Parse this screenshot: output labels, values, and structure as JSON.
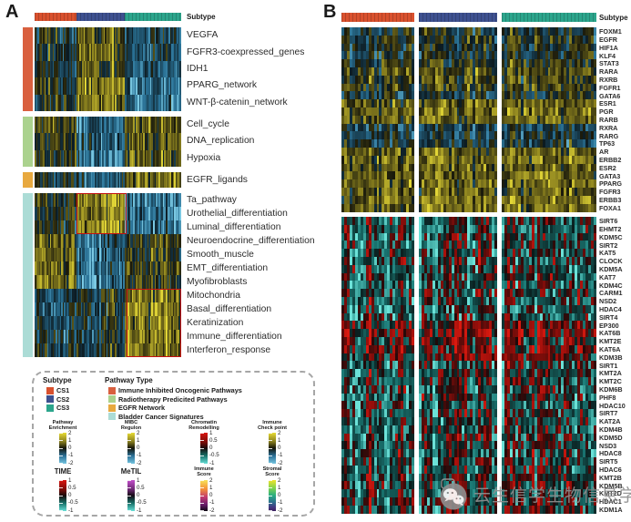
{
  "panels": {
    "a": {
      "label": "A",
      "subtype_header": "Subtype"
    },
    "b": {
      "label": "B",
      "subtype_header": "Subtype"
    }
  },
  "subtypes": [
    {
      "label": "CS1",
      "color": "#d9512e"
    },
    {
      "label": "CS2",
      "color": "#3e5190"
    },
    {
      "label": "CS3",
      "color": "#2ca58c"
    }
  ],
  "chart_data": [
    {
      "panel": "A",
      "type": "heatmap",
      "name": "pathway_enrichment",
      "colormap": "yellow-black-blue",
      "value_range": [
        -2,
        2
      ],
      "column_groups": [
        "CS1",
        "CS2",
        "CS3"
      ],
      "row_groups": [
        {
          "pathway_type": "Immune Inhibited Oncogenic Pathways",
          "color": "#d9603f",
          "rows": [
            {
              "label": "VEGFA",
              "block_means": [
                0.1,
                0.6,
                -0.6
              ]
            },
            {
              "label": "FGFR3-coexpressed_genes",
              "block_means": [
                0.0,
                0.7,
                -0.7
              ]
            },
            {
              "label": "IDH1",
              "block_means": [
                -0.1,
                0.5,
                -0.8
              ]
            },
            {
              "label": "PPARG_network",
              "block_means": [
                0.2,
                1.1,
                -1.1
              ]
            },
            {
              "label": "WNT-β-catenin_network",
              "block_means": [
                0.1,
                1.0,
                -1.0
              ]
            }
          ]
        },
        {
          "pathway_type": "Radiotherapy Predicited Pathways",
          "color": "#abd28e",
          "rows": [
            {
              "label": "Cell_cycle",
              "block_means": [
                0.5,
                -0.9,
                0.6
              ]
            },
            {
              "label": "DNA_replication",
              "block_means": [
                0.4,
                -0.8,
                0.6
              ]
            },
            {
              "label": "Hypoxia",
              "block_means": [
                0.3,
                -1.2,
                0.7
              ]
            }
          ]
        },
        {
          "pathway_type": "EGFR Network",
          "color": "#e8a93f",
          "rows": [
            {
              "label": "EGFR_ligands",
              "block_means": [
                -0.3,
                -0.8,
                0.8
              ]
            }
          ]
        },
        {
          "pathway_type": "Bladder Cancer Signatures",
          "color": "#acdcd6",
          "rows": [
            {
              "label": "Ta_pathway",
              "block_means": [
                0.0,
                1.2,
                -1.2
              ]
            },
            {
              "label": "Urothelial_differentiation",
              "block_means": [
                -0.2,
                1.1,
                -1.2
              ]
            },
            {
              "label": "Luminal_differentiation",
              "block_means": [
                -0.1,
                1.1,
                -1.1
              ]
            },
            {
              "label": "Neuroendocrine_differentiation",
              "block_means": [
                0.6,
                -1.0,
                0.2
              ]
            },
            {
              "label": "Smooth_muscle",
              "block_means": [
                0.9,
                -1.1,
                0.1
              ]
            },
            {
              "label": "EMT_differentiation",
              "block_means": [
                0.8,
                -1.2,
                0.4
              ]
            },
            {
              "label": "Myofibroblasts",
              "block_means": [
                0.9,
                -1.3,
                0.3
              ]
            },
            {
              "label": "Mitochondria",
              "block_means": [
                -0.6,
                -0.2,
                0.9
              ]
            },
            {
              "label": "Basal_differentiation",
              "block_means": [
                -0.7,
                -0.3,
                1.1
              ]
            },
            {
              "label": "Keratinization",
              "block_means": [
                -0.6,
                -0.4,
                1.0
              ]
            },
            {
              "label": "Immune_differentiation",
              "block_means": [
                -0.5,
                -0.2,
                1.0
              ]
            },
            {
              "label": "Interferon_response",
              "block_means": [
                -0.5,
                -0.3,
                1.0
              ]
            }
          ]
        }
      ],
      "annotations": [
        {
          "shape": "red-box",
          "row_group": 3,
          "rows": [
            0,
            2
          ],
          "col_frac": [
            0.285,
            0.63
          ]
        },
        {
          "shape": "red-box",
          "row_group": 3,
          "rows": [
            7,
            11
          ],
          "col_frac": [
            0.625,
            1.0
          ]
        }
      ]
    },
    {
      "panel": "B",
      "type": "heatmap",
      "name": "regulon",
      "colormap": "yellow-black-blue",
      "value_range": [
        -2,
        2
      ],
      "column_groups": [
        "CS1",
        "CS2",
        "CS3"
      ],
      "rows": [
        {
          "label": "FOXM1",
          "block_means": [
            -0.2,
            -0.9,
            0.8
          ]
        },
        {
          "label": "EGFR",
          "block_means": [
            0.0,
            -1.0,
            0.9
          ]
        },
        {
          "label": "HIF1A",
          "block_means": [
            -0.1,
            -1.1,
            0.9
          ]
        },
        {
          "label": "KLF4",
          "block_means": [
            -0.2,
            -1.0,
            0.8
          ]
        },
        {
          "label": "STAT3",
          "block_means": [
            0.0,
            -1.1,
            0.9
          ]
        },
        {
          "label": "RARA",
          "block_means": [
            0.4,
            -0.6,
            0.5
          ]
        },
        {
          "label": "RXRB",
          "block_means": [
            0.3,
            -0.5,
            0.4
          ]
        },
        {
          "label": "FGFR1",
          "block_means": [
            0.2,
            -0.9,
            0.6
          ]
        },
        {
          "label": "GATA6",
          "block_means": [
            -0.2,
            -1.0,
            0.7
          ]
        },
        {
          "label": "ESR1",
          "block_means": [
            0.7,
            -0.9,
            0.1
          ]
        },
        {
          "label": "PGR",
          "block_means": [
            0.8,
            -1.0,
            0.0
          ]
        },
        {
          "label": "RARB",
          "block_means": [
            0.6,
            -0.8,
            0.2
          ]
        },
        {
          "label": "RXRA",
          "block_means": [
            -0.5,
            1.0,
            0.1
          ]
        },
        {
          "label": "RARG",
          "block_means": [
            -0.4,
            0.9,
            0.2
          ]
        },
        {
          "label": "TP63",
          "block_means": [
            -0.3,
            1.0,
            -0.2
          ]
        },
        {
          "label": "AR",
          "block_means": [
            0.7,
            0.3,
            -0.8
          ]
        },
        {
          "label": "ERBB2",
          "block_means": [
            0.8,
            0.6,
            -1.0
          ]
        },
        {
          "label": "ESR2",
          "block_means": [
            0.7,
            0.5,
            -0.9
          ]
        },
        {
          "label": "GATA3",
          "block_means": [
            0.8,
            0.8,
            -1.1
          ]
        },
        {
          "label": "PPARG",
          "block_means": [
            0.8,
            0.7,
            -1.1
          ]
        },
        {
          "label": "FGFR3",
          "block_means": [
            0.6,
            0.9,
            -1.0
          ]
        },
        {
          "label": "ERBB3",
          "block_means": [
            0.8,
            0.7,
            -1.1
          ]
        },
        {
          "label": "FOXA1",
          "block_means": [
            0.8,
            0.8,
            -1.2
          ]
        }
      ]
    },
    {
      "panel": "B",
      "type": "heatmap",
      "name": "chromatin_remodelling",
      "colormap": "red-black-cyan",
      "value_range": [
        -1,
        1
      ],
      "column_groups": [
        "CS1",
        "CS2",
        "CS3"
      ],
      "rows": [
        {
          "label": "SIRT6",
          "block_means": [
            -0.2,
            -0.5,
            0.7
          ]
        },
        {
          "label": "EHMT2",
          "block_means": [
            -0.3,
            -0.6,
            0.8
          ]
        },
        {
          "label": "KDM5C",
          "block_means": [
            -0.2,
            -0.7,
            0.8
          ]
        },
        {
          "label": "SIRT2",
          "block_means": [
            -0.3,
            -0.6,
            0.9
          ]
        },
        {
          "label": "KAT5",
          "block_means": [
            -0.2,
            -0.7,
            0.9
          ]
        },
        {
          "label": "CLOCK",
          "block_means": [
            -0.3,
            -0.8,
            1.2
          ]
        },
        {
          "label": "KDM5A",
          "block_means": [
            -0.3,
            -0.8,
            1.2
          ]
        },
        {
          "label": "KAT7",
          "block_means": [
            -0.2,
            -0.7,
            1.0
          ]
        },
        {
          "label": "KDM4C",
          "block_means": [
            -0.3,
            -0.8,
            1.1
          ]
        },
        {
          "label": "CARM1",
          "block_means": [
            -0.2,
            -0.7,
            1.2
          ]
        },
        {
          "label": "NSD2",
          "block_means": [
            -0.3,
            -0.9,
            1.2
          ]
        },
        {
          "label": "HDAC4",
          "block_means": [
            -0.4,
            -1.0,
            1.2
          ]
        },
        {
          "label": "SIRT4",
          "block_means": [
            -0.3,
            -0.9,
            1.2
          ]
        },
        {
          "label": "EP300",
          "block_means": [
            0.2,
            0.3,
            0.5
          ]
        },
        {
          "label": "KAT6B",
          "block_means": [
            0.3,
            0.2,
            0.6
          ]
        },
        {
          "label": "KMT2E",
          "block_means": [
            0.2,
            0.4,
            0.4
          ]
        },
        {
          "label": "KAT6A",
          "block_means": [
            0.3,
            0.3,
            0.5
          ]
        },
        {
          "label": "KDM3B",
          "block_means": [
            0.2,
            0.3,
            0.4
          ]
        },
        {
          "label": "SIRT1",
          "block_means": [
            -0.2,
            0.8,
            -0.6
          ]
        },
        {
          "label": "KMT2A",
          "block_means": [
            -0.2,
            0.9,
            -0.7
          ]
        },
        {
          "label": "KMT2C",
          "block_means": [
            -0.3,
            0.9,
            -0.8
          ]
        },
        {
          "label": "KDM6B",
          "block_means": [
            -0.3,
            1.0,
            -0.9
          ]
        },
        {
          "label": "PHF8",
          "block_means": [
            -0.2,
            1.1,
            -0.9
          ]
        },
        {
          "label": "HDAC10",
          "block_means": [
            -0.3,
            1.1,
            -1.0
          ]
        },
        {
          "label": "SIRT7",
          "block_means": [
            -0.2,
            1.2,
            -0.9
          ]
        },
        {
          "label": "KAT2A",
          "block_means": [
            -0.3,
            1.1,
            -1.0
          ]
        },
        {
          "label": "KDM4B",
          "block_means": [
            -0.3,
            1.0,
            -0.9
          ]
        },
        {
          "label": "KDM5D",
          "block_means": [
            -0.2,
            0.9,
            -0.8
          ]
        },
        {
          "label": "NSD3",
          "block_means": [
            -0.2,
            0.6,
            0.1
          ]
        },
        {
          "label": "HDAC8",
          "block_means": [
            -0.3,
            0.5,
            0.0
          ]
        },
        {
          "label": "SIRT5",
          "block_means": [
            -0.2,
            0.6,
            -0.1
          ]
        },
        {
          "label": "HDAC6",
          "block_means": [
            -0.3,
            0.5,
            0.1
          ]
        },
        {
          "label": "KMT2B",
          "block_means": [
            -0.2,
            0.7,
            0.0
          ]
        },
        {
          "label": "KDM5B",
          "block_means": [
            -0.1,
            0.6,
            -0.1
          ]
        },
        {
          "label": "KMT2D",
          "block_means": [
            -0.2,
            0.7,
            0.0
          ]
        },
        {
          "label": "HDAC1",
          "block_means": [
            -0.1,
            0.6,
            0.1
          ]
        },
        {
          "label": "KDM1A",
          "block_means": [
            -0.2,
            0.5,
            0.0
          ]
        }
      ]
    }
  ],
  "legend": {
    "subtype": {
      "title": "Subtype",
      "items": [
        {
          "label": "CS1",
          "color": "#d9512e"
        },
        {
          "label": "CS2",
          "color": "#3e5190"
        },
        {
          "label": "CS3",
          "color": "#2ca58c"
        }
      ]
    },
    "pathway_type": {
      "title": "Pathway Type",
      "items": [
        {
          "label": "Immune Inhibited Oncogenic Pathways",
          "color": "#d9603f"
        },
        {
          "label": "Radiotherapy Predicited Pathways",
          "color": "#abd28e"
        },
        {
          "label": "EGFR Network",
          "color": "#e8a93f"
        },
        {
          "label": "Bladder Cancer Signatures",
          "color": "#acdcd6"
        }
      ]
    },
    "colorbars": [
      {
        "title_lines": [
          "Pathway",
          "Enrichment"
        ],
        "gradient": "yellowblue",
        "ticks": [
          "2",
          "1",
          "0",
          "-1",
          "-2"
        ]
      },
      {
        "title_lines": [
          "MIBC",
          "Regulon"
        ],
        "gradient": "yellowblue",
        "ticks": [
          "2",
          "1",
          "0",
          "-1",
          "-2"
        ]
      },
      {
        "title_lines": [
          "Chromatin",
          "Remodelling"
        ],
        "gradient": "redcyan",
        "ticks": [
          "1",
          "0.5",
          "0",
          "-0.5",
          "-1"
        ]
      },
      {
        "title_lines": [
          "Immune",
          "Check point"
        ],
        "gradient": "yellowblue",
        "ticks": [
          "2",
          "1",
          "0",
          "-1",
          "-2"
        ]
      },
      {
        "title_lines": [
          "TIME"
        ],
        "gradient": "redcyan",
        "ticks": [
          "1",
          "0.5",
          "0",
          "-0.5",
          "-1"
        ]
      },
      {
        "title_lines": [
          "MeTIL"
        ],
        "gradient": "magentacyan",
        "ticks": [
          "1",
          "0.5",
          "0",
          "-0.5",
          "-1"
        ]
      },
      {
        "title_lines": [
          "Immune",
          "Score"
        ],
        "gradient": "magma",
        "ticks": [
          "2",
          "1",
          "0",
          "-1",
          "-2"
        ]
      },
      {
        "title_lines": [
          "Stromal",
          "Score"
        ],
        "gradient": "viridis",
        "ticks": [
          "2",
          "1",
          "0",
          "-1",
          "-2"
        ]
      }
    ]
  },
  "watermark": {
    "text": "云生信学生物信息学"
  }
}
